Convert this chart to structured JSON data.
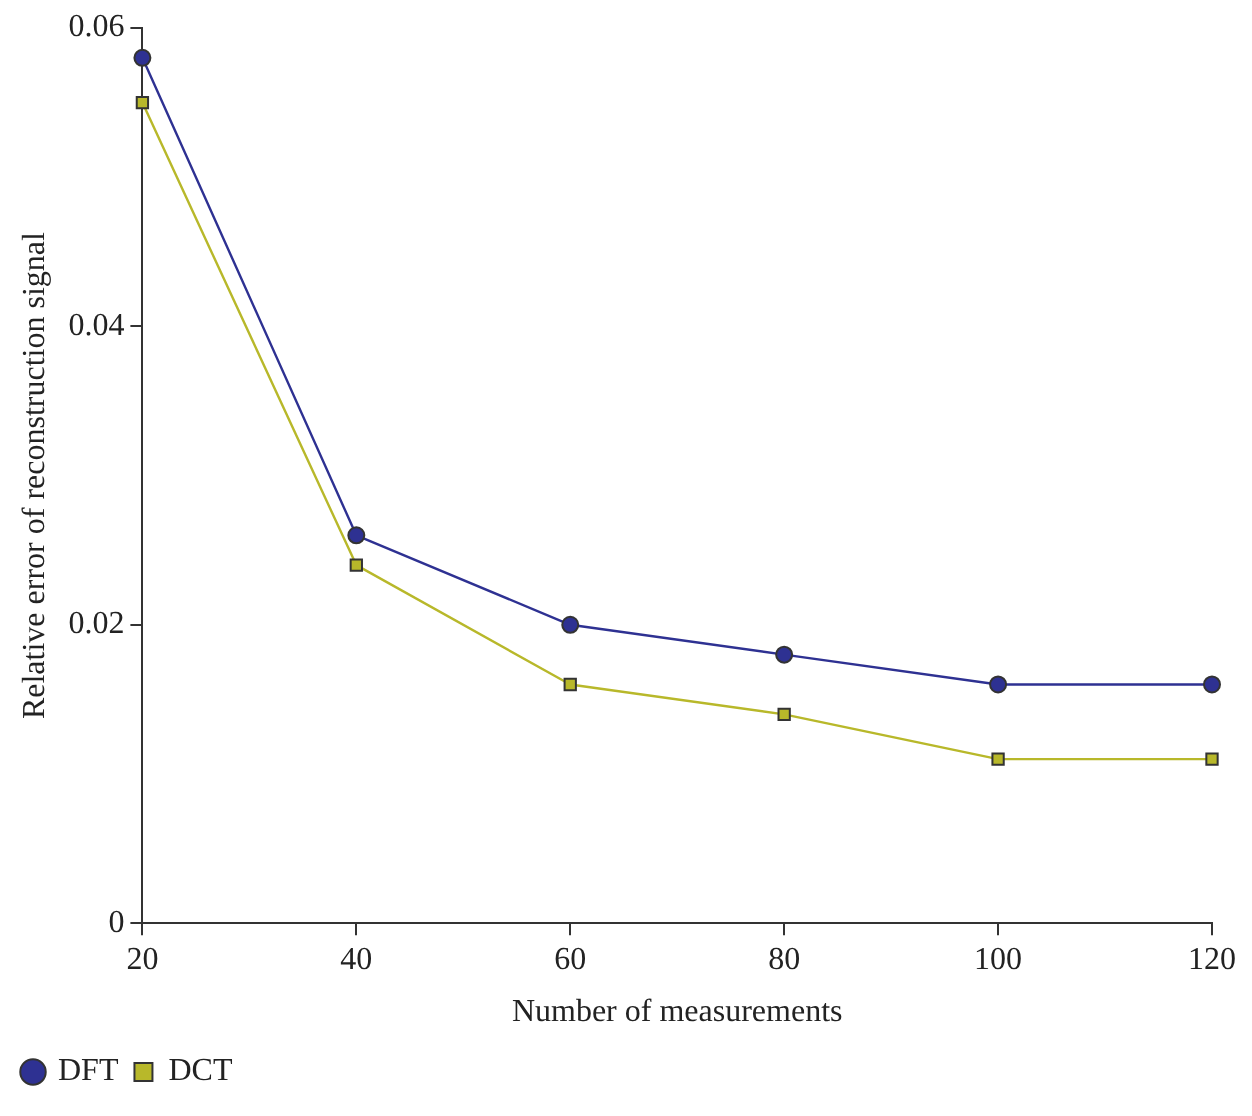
{
  "chart_data": {
    "type": "line",
    "xlabel": "Number of measurements",
    "ylabel": "Relative error of reconstruction signal",
    "x": [
      20,
      40,
      60,
      80,
      100,
      120
    ],
    "series": [
      {
        "name": "DFT",
        "color": "#2e3192",
        "marker": "circle",
        "values": [
          0.058,
          0.026,
          0.02,
          0.018,
          0.016,
          0.016
        ]
      },
      {
        "name": "DCT",
        "color": "#b8b82a",
        "marker": "square",
        "values": [
          0.055,
          0.024,
          0.016,
          0.014,
          0.011,
          0.011
        ]
      }
    ],
    "xlim": [
      20,
      120
    ],
    "xticks": [
      20,
      40,
      60,
      80,
      100,
      120
    ],
    "ylim": [
      0,
      0.06
    ],
    "yticks": [
      0,
      0.02,
      0.04,
      0.06
    ],
    "grid": false,
    "legend": "bottom left",
    "line_style": "solid"
  }
}
